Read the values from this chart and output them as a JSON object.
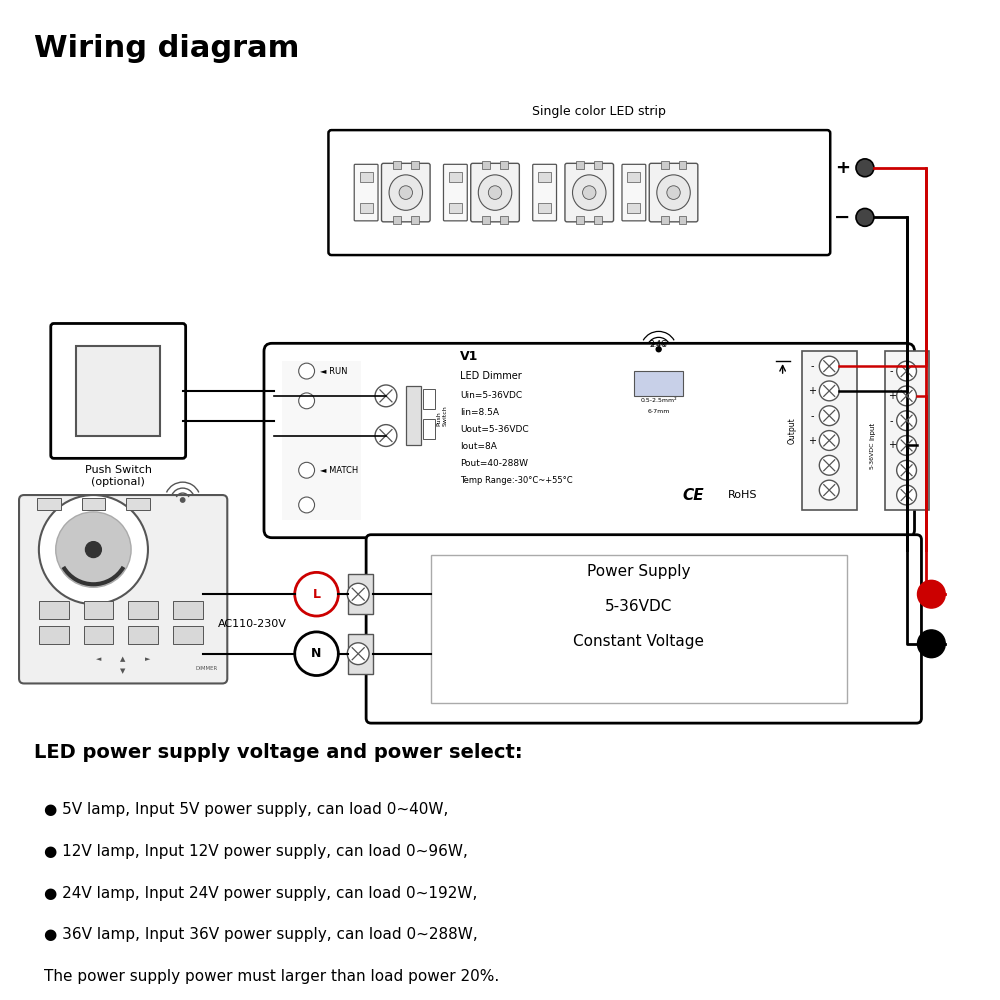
{
  "title": "Wiring diagram",
  "led_strip_label": "Single color LED strip",
  "dimmer_text": [
    "V1",
    "LED Dimmer",
    "Uin=5-36VDC",
    "Iin=8.5A",
    "Uout=5-36VDC",
    "Iout=8A",
    "Pout=40-288W",
    "Temp Range:-30°C~+55°C"
  ],
  "push_switch_label": "Push Switch\n(optional)",
  "power_supply_lines": [
    "Power Supply",
    "5-36VDC",
    "Constant Voltage"
  ],
  "ac_label": "AC110-230V",
  "section_title": "LED power supply voltage and power select:",
  "bullet_items": [
    "● 5V lamp, Input 5V power supply, can load 0~40W,",
    "● 12V lamp, Input 12V power supply, can load 0~96W,",
    "● 24V lamp, Input 24V power supply, can load 0~192W,",
    "● 36V lamp, Input 36V power supply, can load 0~288W,"
  ],
  "footer": "The power supply power must larger than load power 20%.",
  "bg_color": "#ffffff",
  "black": "#000000",
  "red": "#cc0000",
  "dgray": "#555555",
  "lgray": "#aaaaaa",
  "boxgray": "#e0e0e0"
}
